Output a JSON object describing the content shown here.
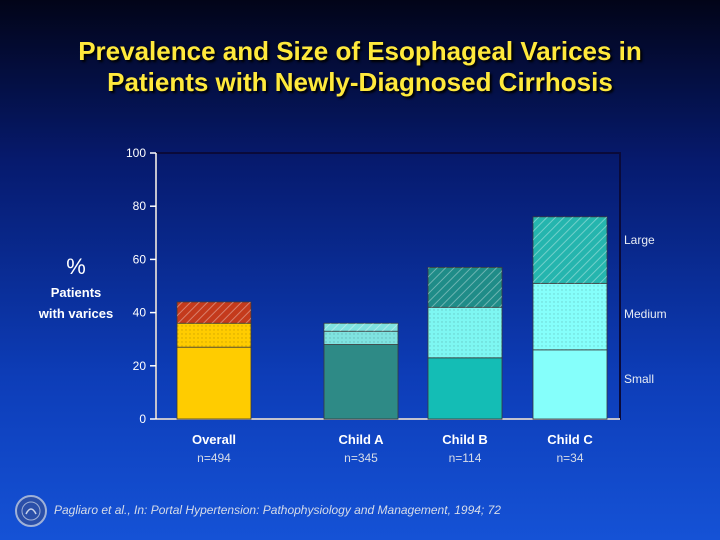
{
  "title": {
    "line1": "Prevalence and Size of Esophageal Varices in",
    "line2": "Patients with Newly-Diagnosed Cirrhosis"
  },
  "citation": "Pagliaro et al., In: Portal Hypertension: Pathophysiology and Management, 1994; 72",
  "y_label": {
    "symbol": "%",
    "line1": "Patients",
    "line2": "with varices"
  },
  "size_labels": {
    "large": "Large",
    "medium": "Medium",
    "small": "Small"
  },
  "colors": {
    "overall": [
      "#ffcc00",
      "#ffcc00",
      "#c43a1c"
    ],
    "childA": [
      "#2e8a86",
      "#7fe3e0",
      "#7fe3e0"
    ],
    "childB": [
      "#14bdb5",
      "#7ef7f2",
      "#1f8c88"
    ],
    "childC": [
      "#85fffb",
      "#85fffb",
      "#25b5ae"
    ]
  },
  "chart_data": {
    "type": "bar",
    "stacked": true,
    "title": "Prevalence and Size of Esophageal Varices in Patients with Newly-Diagnosed Cirrhosis",
    "ylabel": "% Patients with varices",
    "ylim": [
      0,
      100
    ],
    "yticks": [
      0,
      20,
      40,
      60,
      80,
      100
    ],
    "categories": [
      "Overall",
      "Child A",
      "Child B",
      "Child C"
    ],
    "sublabels": [
      "n=494",
      "n=345",
      "n=114",
      "n=34"
    ],
    "series": [
      {
        "name": "Small",
        "values": [
          27,
          28,
          23,
          26
        ]
      },
      {
        "name": "Medium",
        "values": [
          9,
          5,
          19,
          25
        ]
      },
      {
        "name": "Large",
        "values": [
          8,
          3,
          15,
          25
        ]
      }
    ],
    "legend": [
      "Large",
      "Medium",
      "Small"
    ]
  }
}
